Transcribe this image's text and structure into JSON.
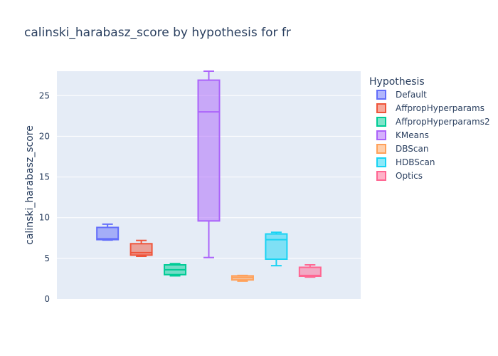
{
  "chart_data": {
    "type": "box",
    "title": "calinski_harabasz_score by hypothesis for fr",
    "xlabel": "",
    "ylabel": "calinski_harabasz_score",
    "ylim": [
      0,
      28
    ],
    "yticks": [
      0,
      5,
      10,
      15,
      20,
      25
    ],
    "ytick_labels": [
      "0",
      "5",
      "10",
      "15",
      "20",
      "25"
    ],
    "legend": {
      "title": "Hypothesis",
      "position": "right"
    },
    "series": [
      {
        "name": "Default",
        "color": "#636efa",
        "whisker_low": 7.25,
        "q1": 7.3,
        "median": 7.4,
        "q3": 8.8,
        "whisker_high": 9.2
      },
      {
        "name": "AffpropHyperparams",
        "color": "#ef553b",
        "whisker_low": 5.25,
        "q1": 5.4,
        "median": 5.7,
        "q3": 6.8,
        "whisker_high": 7.2
      },
      {
        "name": "AffpropHyperparams2",
        "color": "#00cc96",
        "whisker_low": 2.85,
        "q1": 3.0,
        "median": 3.6,
        "q3": 4.2,
        "whisker_high": 4.35
      },
      {
        "name": "KMeans",
        "color": "#ab63fa",
        "whisker_low": 5.1,
        "q1": 9.6,
        "median": 23.0,
        "q3": 26.9,
        "whisker_high": 28.1
      },
      {
        "name": "DBScan",
        "color": "#ffa15a",
        "whisker_low": 2.2,
        "q1": 2.35,
        "median": 2.65,
        "q3": 2.85,
        "whisker_high": 2.9
      },
      {
        "name": "HDBScan",
        "color": "#19d3f3",
        "whisker_low": 4.1,
        "q1": 4.9,
        "median": 7.3,
        "q3": 8.0,
        "whisker_high": 8.2
      },
      {
        "name": "Optics",
        "color": "#ff6692",
        "whisker_low": 2.7,
        "q1": 2.8,
        "median": 2.9,
        "q3": 3.9,
        "whisker_high": 4.2
      }
    ]
  }
}
